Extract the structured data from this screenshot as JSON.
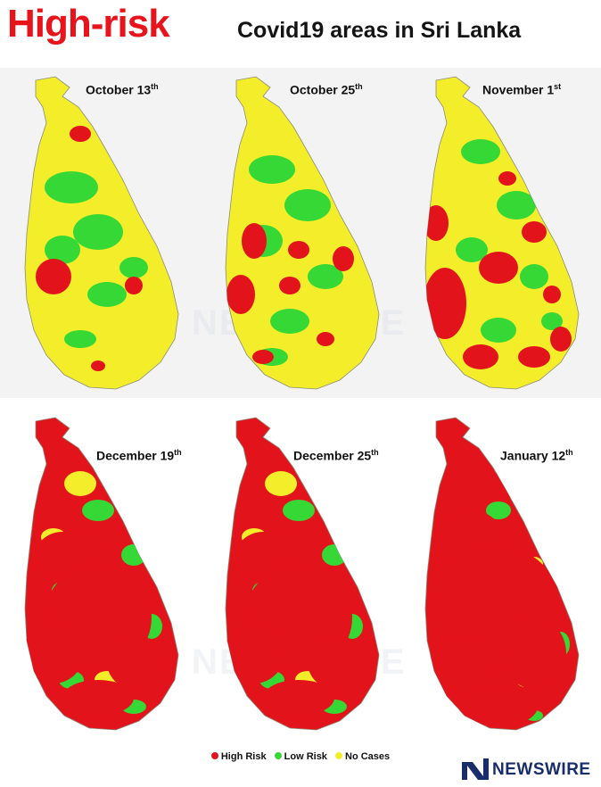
{
  "title": {
    "main": "High-risk",
    "sub": "Covid19 areas in Sri Lanka"
  },
  "maps": [
    {
      "date": "October 13",
      "suffix": "th",
      "level": "mostly-no-cases"
    },
    {
      "date": "October 25",
      "suffix": "th",
      "level": "some-high-risk"
    },
    {
      "date": "November 1",
      "suffix": "st",
      "level": "moderate-high-risk"
    },
    {
      "date": "December 19",
      "suffix": "th",
      "level": "widespread-high-risk"
    },
    {
      "date": "December 25",
      "suffix": "th",
      "level": "widespread-high-risk"
    },
    {
      "date": "January 12",
      "suffix": "th",
      "level": "near-total-high-risk"
    }
  ],
  "legend": [
    {
      "label": "High Risk",
      "color": "#e3131b"
    },
    {
      "label": "Low Risk",
      "color": "#35d834"
    },
    {
      "label": "No Cases",
      "color": "#f4ee2a"
    }
  ],
  "brand": {
    "name": "NEWSWIRE",
    "color": "#1a2d6b"
  },
  "watermark": "NEWSWIRE",
  "colors": {
    "high": "#e3131b",
    "low": "#35d834",
    "none": "#f4ee2a",
    "title_red": "#e8141c"
  }
}
